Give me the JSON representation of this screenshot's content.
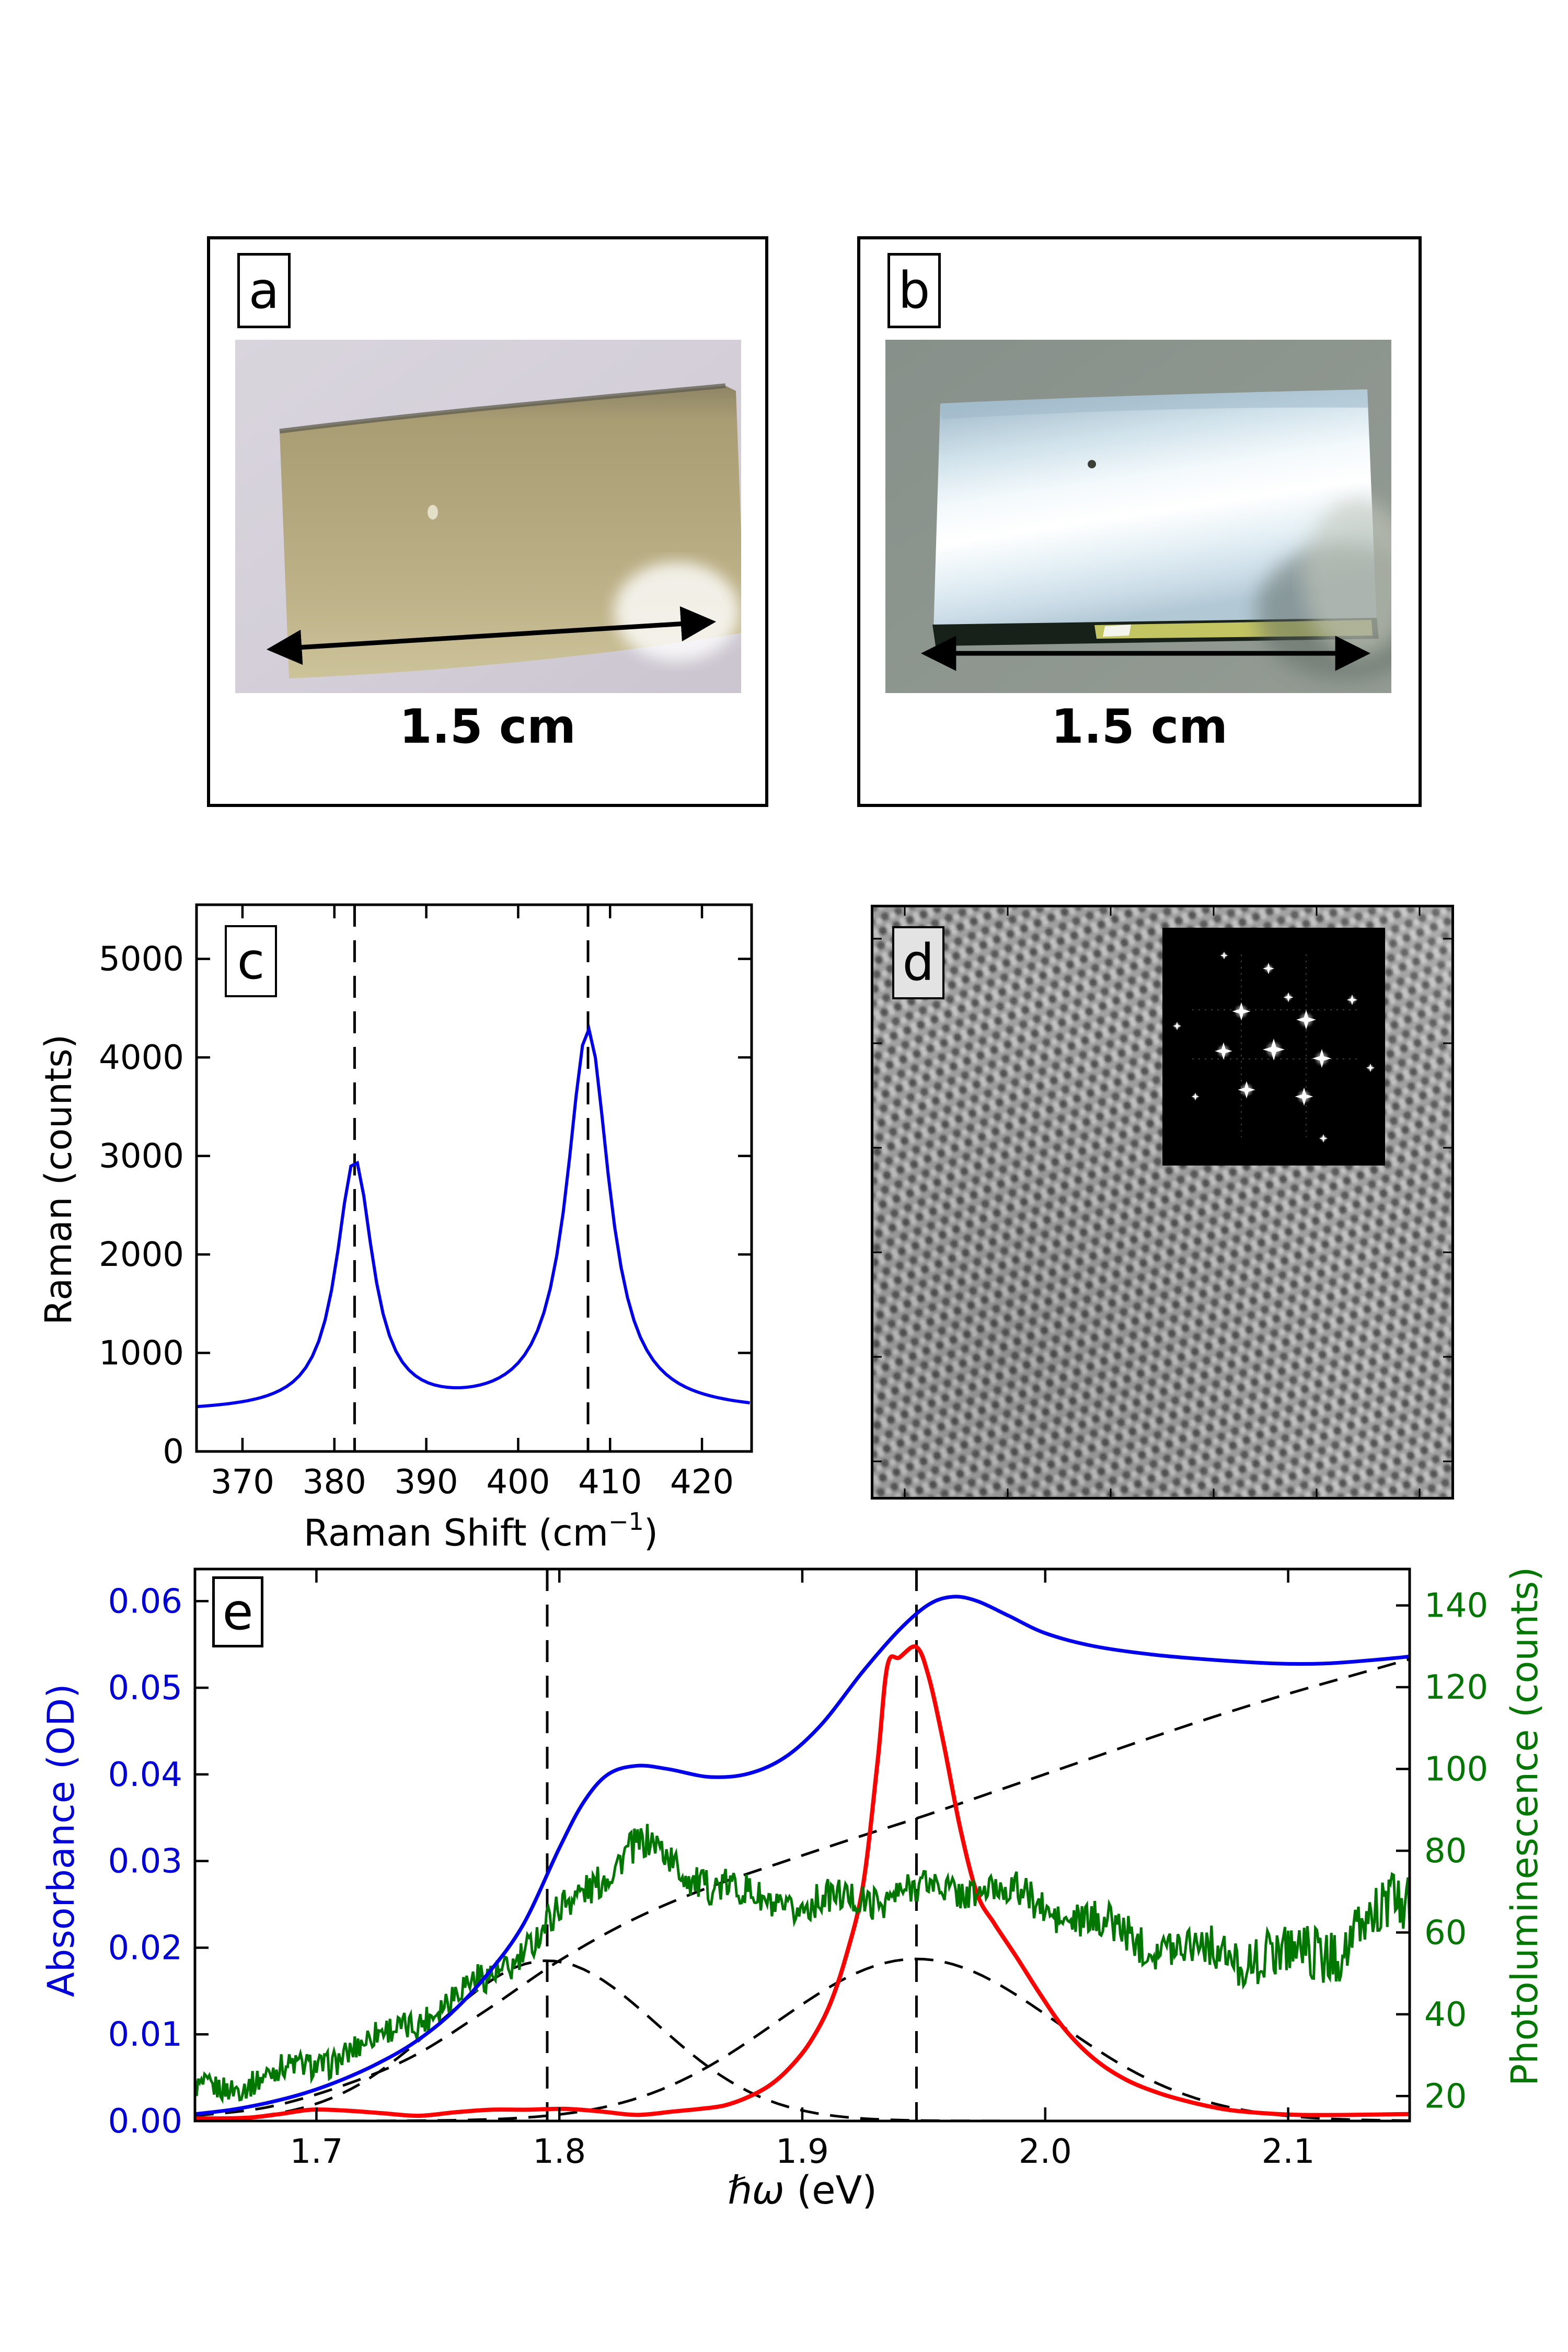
{
  "figure": {
    "background": "#ffffff",
    "accent_blue": "#0000dd",
    "accent_green": "#007700",
    "accent_red": "#ff0000"
  },
  "panel_a": {
    "letter": "a",
    "scale_label": "1.5 cm"
  },
  "panel_b": {
    "letter": "b",
    "scale_label": "1.5 cm"
  },
  "panel_c": {
    "letter": "c"
  },
  "panel_d": {
    "letter": "d",
    "fft_spots": [
      [
        0,
        5,
        1.5
      ],
      [
        -62,
        -68,
        1.25
      ],
      [
        62,
        -52,
        1.35
      ],
      [
        -96,
        8,
        1.2
      ],
      [
        92,
        22,
        1.3
      ],
      [
        -52,
        82,
        1.2
      ],
      [
        58,
        95,
        1.25
      ],
      [
        -10,
        -150,
        0.8
      ],
      [
        150,
        -90,
        0.75
      ],
      [
        185,
        40,
        0.6
      ],
      [
        95,
        175,
        0.6
      ],
      [
        -150,
        95,
        0.55
      ],
      [
        -185,
        -40,
        0.6
      ],
      [
        -95,
        -175,
        0.55
      ],
      [
        28,
        -95,
        0.7
      ]
    ]
  },
  "panel_e": {
    "letter": "e"
  },
  "chart_data": [
    {
      "id": "raman",
      "type": "line",
      "panel": "c",
      "title": "",
      "xlabel_prefix": "Raman Shift (cm",
      "xlabel_sup": "−1",
      "xlabel_suffix": ")",
      "ylabel": "Raman (counts)",
      "xlim": [
        365,
        425.4
      ],
      "ylim": [
        0,
        5550
      ],
      "xticks": [
        370,
        380,
        390,
        400,
        410,
        420
      ],
      "yticks": [
        0,
        1000,
        2000,
        3000,
        4000,
        5000
      ],
      "grid": false,
      "legend": null,
      "vlines": [
        382.2,
        407.6
      ],
      "series": [
        {
          "name": "raman-spectrum",
          "color": "#0000ee",
          "width": 6,
          "model": "lorentzian_sum",
          "baseline": 390,
          "sample_step": 0.7,
          "peaks": [
            {
              "center": 382.2,
              "amplitude": 2530,
              "fwhm": 4.8
            },
            {
              "center": 407.6,
              "amplitude": 3880,
              "fwhm": 5.6
            }
          ]
        }
      ]
    },
    {
      "id": "optics",
      "type": "line",
      "panel": "e",
      "xlabel_main": "ℏω",
      "xlabel_unit": " (eV)",
      "ylabel_left": "Absorbance (OD)",
      "ylabel_right": "Photoluminescence (counts)",
      "xlim": [
        1.65,
        2.15
      ],
      "ylim_left": [
        0,
        0.0637
      ],
      "ylim_right": [
        13.9,
        148.9
      ],
      "xticks": [
        1.7,
        1.8,
        1.9,
        2.0,
        2.1
      ],
      "xtick_labels": [
        "1.7",
        "1.8",
        "1.9",
        "2.0",
        "2.1"
      ],
      "yticks_left": [
        0,
        0.01,
        0.02,
        0.03,
        0.04,
        0.05,
        0.06
      ],
      "ytick_labels_left": [
        "0.00",
        "0.01",
        "0.02",
        "0.03",
        "0.04",
        "0.05",
        "0.06"
      ],
      "yticks_right": [
        20,
        40,
        60,
        80,
        100,
        120,
        140
      ],
      "axis_color_left": "#0000dd",
      "axis_color_right": "#007700",
      "grid": false,
      "vlines": [
        1.795,
        1.947
      ],
      "series": [
        {
          "name": "exciton-A-gaussian-fit",
          "axis": "left",
          "model": "gaussian",
          "center": 1.795,
          "amplitude": 0.0185,
          "sigma": 0.045,
          "color": "#000000",
          "width": 5,
          "dash": [
            36,
            22
          ]
        },
        {
          "name": "exciton-B-gaussian-fit",
          "axis": "left",
          "model": "gaussian",
          "center": 1.947,
          "amplitude": 0.0187,
          "sigma": 0.058,
          "color": "#000000",
          "width": 5,
          "dash": [
            36,
            22
          ]
        },
        {
          "name": "background-fit",
          "axis": "left",
          "model": "anchors",
          "smooth": true,
          "color": "#000000",
          "width": 5,
          "dash": [
            36,
            22
          ],
          "points": [
            [
              1.65,
              0.0006
            ],
            [
              1.68,
              0.0016
            ],
            [
              1.71,
              0.004
            ],
            [
              1.74,
              0.0075
            ],
            [
              1.77,
              0.0128
            ],
            [
              1.8,
              0.0185
            ],
            [
              1.83,
              0.0232
            ],
            [
              1.86,
              0.0268
            ],
            [
              1.89,
              0.0297
            ],
            [
              1.92,
              0.0325
            ],
            [
              1.95,
              0.0352
            ],
            [
              1.98,
              0.0381
            ],
            [
              2.01,
              0.041
            ],
            [
              2.04,
              0.0439
            ],
            [
              2.07,
              0.0467
            ],
            [
              2.1,
              0.0493
            ],
            [
              2.13,
              0.0517
            ],
            [
              2.15,
              0.0533
            ]
          ]
        },
        {
          "name": "ple-spectrum",
          "axis": "left",
          "model": "anchors",
          "smooth": true,
          "color": "#ff0000",
          "width": 8,
          "points": [
            [
              1.65,
              0.0003
            ],
            [
              1.662,
              0.0003
            ],
            [
              1.673,
              0.0004
            ],
            [
              1.685,
              0.0008
            ],
            [
              1.698,
              0.0013
            ],
            [
              1.712,
              0.0012
            ],
            [
              1.727,
              0.0009
            ],
            [
              1.742,
              0.0006
            ],
            [
              1.757,
              0.001
            ],
            [
              1.772,
              0.0013
            ],
            [
              1.787,
              0.0013
            ],
            [
              1.802,
              0.0014
            ],
            [
              1.817,
              0.0011
            ],
            [
              1.832,
              0.0007
            ],
            [
              1.847,
              0.0011
            ],
            [
              1.858,
              0.0014
            ],
            [
              1.868,
              0.0018
            ],
            [
              1.878,
              0.0028
            ],
            [
              1.887,
              0.0042
            ],
            [
              1.895,
              0.0062
            ],
            [
              1.903,
              0.009
            ],
            [
              1.911,
              0.0132
            ],
            [
              1.918,
              0.019
            ],
            [
              1.925,
              0.0272
            ],
            [
              1.931,
              0.0415
            ],
            [
              1.935,
              0.0525
            ],
            [
              1.94,
              0.0535
            ],
            [
              1.947,
              0.0547
            ],
            [
              1.952,
              0.0513
            ],
            [
              1.958,
              0.0438
            ],
            [
              1.965,
              0.0338
            ],
            [
              1.972,
              0.0262
            ],
            [
              1.979,
              0.0228
            ],
            [
              1.988,
              0.019
            ],
            [
              1.998,
              0.0146
            ],
            [
              2.008,
              0.0106
            ],
            [
              2.02,
              0.0072
            ],
            [
              2.033,
              0.0048
            ],
            [
              2.047,
              0.0032
            ],
            [
              2.061,
              0.0021
            ],
            [
              2.075,
              0.0013
            ],
            [
              2.09,
              0.0009
            ],
            [
              2.105,
              0.0007
            ],
            [
              2.125,
              0.0007
            ],
            [
              2.15,
              0.0008
            ]
          ]
        },
        {
          "name": "photoluminescence-spectrum",
          "axis": "right",
          "model": "anchors_noise",
          "color": "#007700",
          "width": 5,
          "samples": 760,
          "points": [
            [
              1.65,
              21
            ],
            [
              1.662,
              22.5
            ],
            [
              1.675,
              24
            ],
            [
              1.69,
              26.5
            ],
            [
              1.705,
              29
            ],
            [
              1.72,
              32.5
            ],
            [
              1.735,
              37
            ],
            [
              1.75,
              42
            ],
            [
              1.765,
              47
            ],
            [
              1.78,
              53
            ],
            [
              1.793,
              60
            ],
            [
              1.806,
              68
            ],
            [
              1.818,
              75
            ],
            [
              1.828,
              80
            ],
            [
              1.838,
              80.5
            ],
            [
              1.85,
              76
            ],
            [
              1.862,
              72
            ],
            [
              1.875,
              69
            ],
            [
              1.888,
              67
            ],
            [
              1.9,
              66.5
            ],
            [
              1.915,
              67.5
            ],
            [
              1.93,
              69
            ],
            [
              1.945,
              70
            ],
            [
              1.96,
              71
            ],
            [
              1.975,
              71
            ],
            [
              1.99,
              68.5
            ],
            [
              2.005,
              65
            ],
            [
              2.02,
              62
            ],
            [
              2.04,
              58.5
            ],
            [
              2.06,
              56
            ],
            [
              2.08,
              54.5
            ],
            [
              2.1,
              54
            ],
            [
              2.115,
              56
            ],
            [
              2.13,
              60
            ],
            [
              2.141,
              64
            ],
            [
              2.15,
              69
            ]
          ],
          "noise_sigma": [
            [
              1.65,
              3.0
            ],
            [
              1.73,
              3.6
            ],
            [
              1.8,
              4.4
            ],
            [
              1.87,
              4.2
            ],
            [
              1.95,
              4.0
            ],
            [
              2.02,
              4.4
            ],
            [
              2.07,
              5.2
            ],
            [
              2.11,
              6.5
            ],
            [
              2.15,
              8.0
            ]
          ]
        },
        {
          "name": "absorbance-spectrum",
          "axis": "left",
          "model": "anchors",
          "smooth": true,
          "color": "#0000ee",
          "width": 7,
          "points": [
            [
              1.65,
              0.0008
            ],
            [
              1.665,
              0.0013
            ],
            [
              1.68,
              0.0021
            ],
            [
              1.695,
              0.0032
            ],
            [
              1.71,
              0.0047
            ],
            [
              1.725,
              0.0066
            ],
            [
              1.74,
              0.009
            ],
            [
              1.755,
              0.0123
            ],
            [
              1.77,
              0.0168
            ],
            [
              1.785,
              0.0226
            ],
            [
              1.8,
              0.0315
            ],
            [
              1.81,
              0.0368
            ],
            [
              1.82,
              0.04
            ],
            [
              1.832,
              0.041
            ],
            [
              1.845,
              0.0406
            ],
            [
              1.862,
              0.0397
            ],
            [
              1.878,
              0.0401
            ],
            [
              1.893,
              0.042
            ],
            [
              1.908,
              0.0458
            ],
            [
              1.925,
              0.0519
            ],
            [
              1.94,
              0.0567
            ],
            [
              1.952,
              0.0596
            ],
            [
              1.962,
              0.0605
            ],
            [
              1.972,
              0.06
            ],
            [
              1.985,
              0.0583
            ],
            [
              2.0,
              0.0563
            ],
            [
              2.02,
              0.0548
            ],
            [
              2.045,
              0.0538
            ],
            [
              2.07,
              0.0532
            ],
            [
              2.095,
              0.0528
            ],
            [
              2.115,
              0.0528
            ],
            [
              2.135,
              0.0532
            ],
            [
              2.15,
              0.0536
            ]
          ]
        }
      ]
    }
  ]
}
